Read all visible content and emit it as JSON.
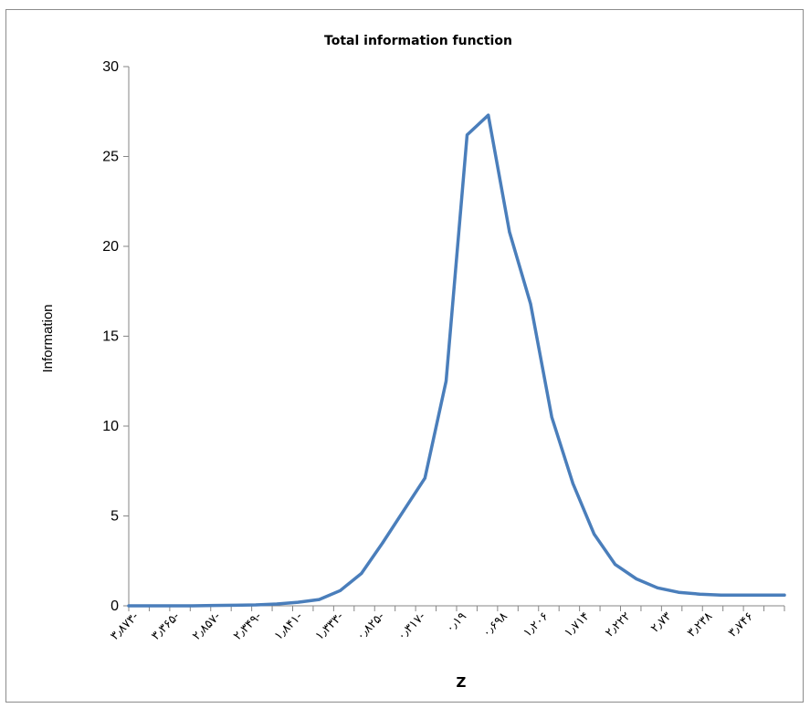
{
  "chart_data": {
    "type": "line",
    "title": "Total information function",
    "xlabel": "Z",
    "ylabel": "Information",
    "ylim": [
      0,
      30
    ],
    "yticks": [
      "0",
      "5",
      "10",
      "15",
      "20",
      "25",
      "30"
    ],
    "categories": [
      "۳٫۸۷۳-",
      "۳٫۳۶۵-",
      "۲٫۸۵۷-",
      "۲٫۳۴۹-",
      "۱٫۸۴۱-",
      "۱٫۳۳۳-",
      "۰٫۸۲۵-",
      "۰٫۳۱۷-",
      "۰٫۱۹",
      "۰٫۶۹۸",
      "۱٫۲۰۶",
      "۱٫۷۱۴",
      "۲٫۲۲۲",
      "۲٫۷۳",
      "۳٫۲۳۸",
      "۳٫۷۴۶"
    ],
    "series": [
      {
        "color": "#4a7ebb",
        "x": [
          -3.873,
          -3.619,
          -3.365,
          -3.111,
          -2.857,
          -2.603,
          -2.349,
          -2.095,
          -1.841,
          -1.587,
          -1.333,
          -1.079,
          -0.825,
          -0.571,
          -0.317,
          -0.063,
          0.19,
          0.444,
          0.698,
          0.952,
          1.206,
          1.46,
          1.714,
          1.968,
          2.222,
          2.476,
          2.73,
          2.984,
          3.238,
          3.492,
          3.746,
          4.0
        ],
        "values": [
          0,
          0,
          0,
          0,
          0.02,
          0.03,
          0.05,
          0.1,
          0.2,
          0.35,
          0.85,
          1.8,
          3.5,
          5.3,
          7.1,
          12.5,
          26.2,
          27.3,
          20.8,
          16.8,
          10.5,
          6.8,
          4.0,
          2.3,
          1.5,
          1.0,
          0.75,
          0.65,
          0.6,
          0.6,
          0.6,
          0.6
        ]
      }
    ]
  }
}
